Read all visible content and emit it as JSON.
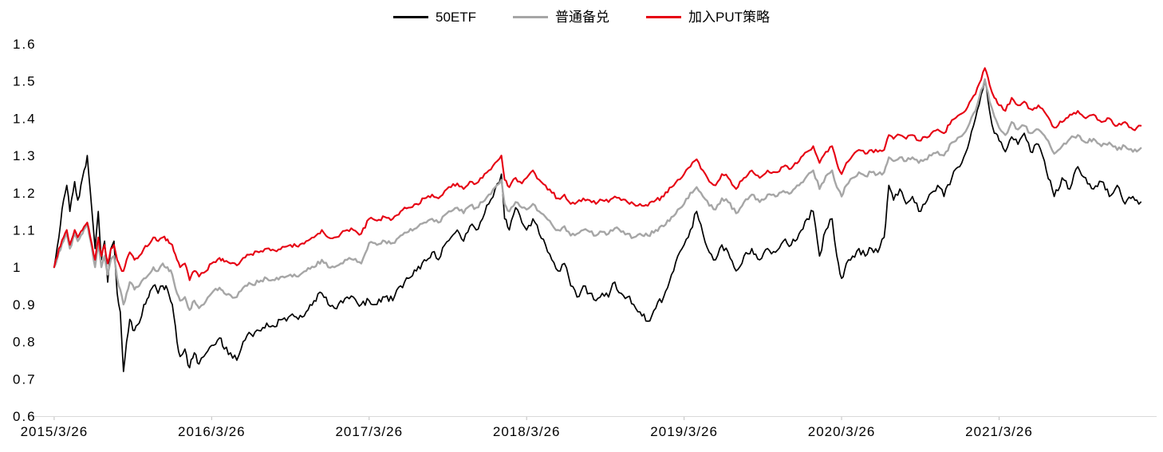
{
  "chart_data": {
    "type": "line",
    "title": "",
    "xlabel": "",
    "ylabel": "",
    "grid": false,
    "legend_position": "top-center",
    "axis_color": "#d9d9d9",
    "tick_color": "#bfbfbf",
    "ylim": [
      0.6,
      1.6
    ],
    "xlim": [
      -0.04,
      6.97
    ],
    "x_unit": "years since 2015/3/26",
    "x_ticks": {
      "positions": [
        0,
        1,
        2,
        3,
        4,
        5,
        6
      ],
      "labels": [
        "2015/3/26",
        "2016/3/26",
        "2017/3/26",
        "2018/3/26",
        "2019/3/26",
        "2020/3/26",
        "2021/3/26"
      ]
    },
    "y_ticks": {
      "values": [
        0.6,
        0.7,
        0.8,
        0.9,
        1,
        1.1,
        1.2,
        1.3,
        1.4,
        1.5,
        1.6
      ],
      "labels": [
        "0.6",
        "0.7",
        "0.8",
        "0.9",
        "1",
        "1.1",
        "1.2",
        "1.3",
        "1.4",
        "1.5",
        "1.6"
      ]
    },
    "x": [
      0,
      0.03,
      0.06,
      0.08,
      0.1,
      0.13,
      0.15,
      0.18,
      0.21,
      0.24,
      0.26,
      0.28,
      0.3,
      0.32,
      0.34,
      0.36,
      0.38,
      0.4,
      0.42,
      0.44,
      0.46,
      0.48,
      0.51,
      0.54,
      0.57,
      0.6,
      0.63,
      0.66,
      0.69,
      0.72,
      0.75,
      0.78,
      0.8,
      0.83,
      0.86,
      0.89,
      0.92,
      0.95,
      1,
      1.05,
      1.08,
      1.12,
      1.16,
      1.2,
      1.25,
      1.3,
      1.35,
      1.4,
      1.45,
      1.5,
      1.55,
      1.6,
      1.65,
      1.7,
      1.74,
      1.78,
      1.82,
      1.86,
      1.9,
      1.95,
      2,
      2.05,
      2.1,
      2.15,
      2.2,
      2.25,
      2.3,
      2.35,
      2.4,
      2.44,
      2.48,
      2.52,
      2.56,
      2.6,
      2.64,
      2.68,
      2.72,
      2.76,
      2.8,
      2.84,
      2.86,
      2.89,
      2.93,
      2.97,
      3,
      3.04,
      3.08,
      3.12,
      3.16,
      3.2,
      3.24,
      3.28,
      3.32,
      3.36,
      3.4,
      3.44,
      3.48,
      3.52,
      3.56,
      3.6,
      3.64,
      3.68,
      3.72,
      3.77,
      3.82,
      3.87,
      3.92,
      3.96,
      4,
      4.04,
      4.08,
      4.12,
      4.16,
      4.2,
      4.24,
      4.28,
      4.33,
      4.38,
      4.43,
      4.48,
      4.53,
      4.58,
      4.63,
      4.68,
      4.73,
      4.78,
      4.82,
      4.86,
      4.9,
      4.94,
      4.97,
      5,
      5.03,
      5.07,
      5.11,
      5.15,
      5.19,
      5.23,
      5.27,
      5.3,
      5.33,
      5.37,
      5.41,
      5.45,
      5.49,
      5.53,
      5.57,
      5.61,
      5.65,
      5.7,
      5.75,
      5.8,
      5.85,
      5.91,
      5.94,
      5.97,
      6,
      6.04,
      6.08,
      6.12,
      6.16,
      6.2,
      6.25,
      6.3,
      6.35,
      6.4,
      6.45,
      6.5,
      6.55,
      6.6,
      6.65,
      6.7,
      6.75,
      6.8,
      6.85,
      6.9
    ],
    "series": [
      {
        "name": "50ETF",
        "color": "#000000",
        "line_width": 1.7,
        "daily_noise": 0.01,
        "values": [
          1,
          1.08,
          1.18,
          1.22,
          1.15,
          1.23,
          1.18,
          1.24,
          1.3,
          1.15,
          1.05,
          1.15,
          1.02,
          1.07,
          0.96,
          1.05,
          1.07,
          0.93,
          0.88,
          0.72,
          0.8,
          0.86,
          0.83,
          0.85,
          0.9,
          0.92,
          0.95,
          0.93,
          0.95,
          0.94,
          0.9,
          0.8,
          0.76,
          0.78,
          0.73,
          0.77,
          0.74,
          0.76,
          0.79,
          0.81,
          0.78,
          0.77,
          0.75,
          0.8,
          0.82,
          0.83,
          0.85,
          0.84,
          0.86,
          0.87,
          0.86,
          0.88,
          0.91,
          0.93,
          0.9,
          0.89,
          0.91,
          0.92,
          0.92,
          0.9,
          0.91,
          0.9,
          0.92,
          0.91,
          0.95,
          0.97,
          0.99,
          1.02,
          1.04,
          1.02,
          1.06,
          1.08,
          1.1,
          1.07,
          1.11,
          1.1,
          1.13,
          1.17,
          1.21,
          1.25,
          1.13,
          1.1,
          1.16,
          1.12,
          1.1,
          1.13,
          1.09,
          1.06,
          1.02,
          0.99,
          1.01,
          0.95,
          0.92,
          0.95,
          0.93,
          0.91,
          0.93,
          0.92,
          0.96,
          0.93,
          0.92,
          0.9,
          0.88,
          0.855,
          0.89,
          0.92,
          0.98,
          1.03,
          1.06,
          1.1,
          1.15,
          1.09,
          1.04,
          1.02,
          1.06,
          1.04,
          0.99,
          1.03,
          1.05,
          1.02,
          1.05,
          1.04,
          1.07,
          1.06,
          1.09,
          1.13,
          1.15,
          1.03,
          1.1,
          1.13,
          1.03,
          0.97,
          1.01,
          1.03,
          1.05,
          1.03,
          1.05,
          1.04,
          1.08,
          1.22,
          1.18,
          1.21,
          1.17,
          1.19,
          1.15,
          1.17,
          1.2,
          1.22,
          1.19,
          1.24,
          1.27,
          1.32,
          1.4,
          1.5,
          1.42,
          1.36,
          1.34,
          1.31,
          1.35,
          1.33,
          1.36,
          1.31,
          1.33,
          1.26,
          1.19,
          1.24,
          1.21,
          1.27,
          1.24,
          1.21,
          1.23,
          1.19,
          1.22,
          1.17,
          1.19,
          1.175
        ]
      },
      {
        "name": "普通备兑",
        "color": "#a6a6a6",
        "line_width": 2.4,
        "daily_noise": 0.0055,
        "values": [
          1,
          1.04,
          1.07,
          1.09,
          1.05,
          1.09,
          1.07,
          1.09,
          1.12,
          1.05,
          1,
          1.06,
          1,
          1.03,
          0.98,
          1.02,
          1.03,
          0.97,
          0.94,
          0.9,
          0.93,
          0.96,
          0.94,
          0.95,
          0.97,
          0.98,
          1,
          0.99,
          1.01,
          1,
          0.98,
          0.93,
          0.91,
          0.92,
          0.885,
          0.91,
          0.89,
          0.9,
          0.93,
          0.945,
          0.93,
          0.925,
          0.92,
          0.945,
          0.955,
          0.96,
          0.97,
          0.965,
          0.975,
          0.98,
          0.975,
          0.99,
          1,
          1.02,
          1,
          1,
          1.01,
          1.02,
          1.02,
          1.01,
          1.065,
          1.06,
          1.07,
          1.065,
          1.085,
          1.095,
          1.105,
          1.12,
          1.13,
          1.12,
          1.14,
          1.15,
          1.16,
          1.145,
          1.165,
          1.16,
          1.175,
          1.195,
          1.215,
          1.235,
          1.17,
          1.15,
          1.175,
          1.16,
          1.155,
          1.17,
          1.15,
          1.135,
          1.115,
          1.1,
          1.11,
          1.085,
          1.09,
          1.1,
          1.095,
          1.085,
          1.095,
          1.09,
          1.105,
          1.095,
          1.09,
          1.08,
          1.09,
          1.085,
          1.1,
          1.11,
          1.135,
          1.155,
          1.17,
          1.2,
          1.215,
          1.19,
          1.165,
          1.155,
          1.185,
          1.175,
          1.145,
          1.175,
          1.195,
          1.175,
          1.195,
          1.19,
          1.205,
          1.2,
          1.22,
          1.245,
          1.26,
          1.21,
          1.245,
          1.26,
          1.215,
          1.19,
          1.22,
          1.24,
          1.255,
          1.245,
          1.255,
          1.25,
          1.255,
          1.295,
          1.285,
          1.295,
          1.285,
          1.295,
          1.28,
          1.29,
          1.3,
          1.31,
          1.3,
          1.335,
          1.35,
          1.375,
          1.42,
          1.505,
          1.445,
          1.405,
          1.375,
          1.355,
          1.39,
          1.37,
          1.38,
          1.36,
          1.37,
          1.345,
          1.305,
          1.325,
          1.345,
          1.355,
          1.335,
          1.345,
          1.325,
          1.335,
          1.315,
          1.325,
          1.31,
          1.32
        ]
      },
      {
        "name": "加入PUT策略",
        "color": "#e60012",
        "line_width": 2.1,
        "daily_noise": 0.0055,
        "values": [
          1,
          1.05,
          1.08,
          1.1,
          1.06,
          1.1,
          1.08,
          1.1,
          1.12,
          1.06,
          1.02,
          1.08,
          1.03,
          1.06,
          1.01,
          1.05,
          1.06,
          1.02,
          1,
          0.99,
          1.02,
          1.04,
          1.02,
          1.03,
          1.05,
          1.06,
          1.08,
          1.07,
          1.08,
          1.075,
          1.06,
          1.02,
          1,
          1.01,
          0.965,
          0.99,
          0.975,
          0.985,
          1.01,
          1.025,
          1.015,
          1.01,
          1.005,
          1.025,
          1.035,
          1.04,
          1.05,
          1.045,
          1.055,
          1.06,
          1.055,
          1.07,
          1.08,
          1.1,
          1.08,
          1.08,
          1.09,
          1.1,
          1.1,
          1.09,
          1.13,
          1.125,
          1.135,
          1.13,
          1.15,
          1.16,
          1.17,
          1.185,
          1.195,
          1.185,
          1.205,
          1.215,
          1.225,
          1.21,
          1.23,
          1.225,
          1.24,
          1.26,
          1.28,
          1.3,
          1.235,
          1.215,
          1.24,
          1.225,
          1.24,
          1.26,
          1.235,
          1.22,
          1.2,
          1.185,
          1.195,
          1.17,
          1.175,
          1.185,
          1.18,
          1.17,
          1.18,
          1.175,
          1.19,
          1.18,
          1.175,
          1.17,
          1.17,
          1.165,
          1.18,
          1.19,
          1.215,
          1.235,
          1.25,
          1.27,
          1.29,
          1.26,
          1.23,
          1.22,
          1.25,
          1.24,
          1.21,
          1.24,
          1.26,
          1.24,
          1.26,
          1.255,
          1.27,
          1.265,
          1.285,
          1.31,
          1.325,
          1.28,
          1.31,
          1.325,
          1.28,
          1.25,
          1.28,
          1.3,
          1.315,
          1.305,
          1.315,
          1.31,
          1.315,
          1.355,
          1.345,
          1.355,
          1.345,
          1.355,
          1.34,
          1.35,
          1.36,
          1.37,
          1.36,
          1.395,
          1.41,
          1.43,
          1.465,
          1.535,
          1.49,
          1.455,
          1.435,
          1.42,
          1.455,
          1.435,
          1.445,
          1.425,
          1.435,
          1.41,
          1.375,
          1.39,
          1.41,
          1.42,
          1.4,
          1.41,
          1.39,
          1.4,
          1.38,
          1.39,
          1.37,
          1.38
        ]
      }
    ]
  }
}
